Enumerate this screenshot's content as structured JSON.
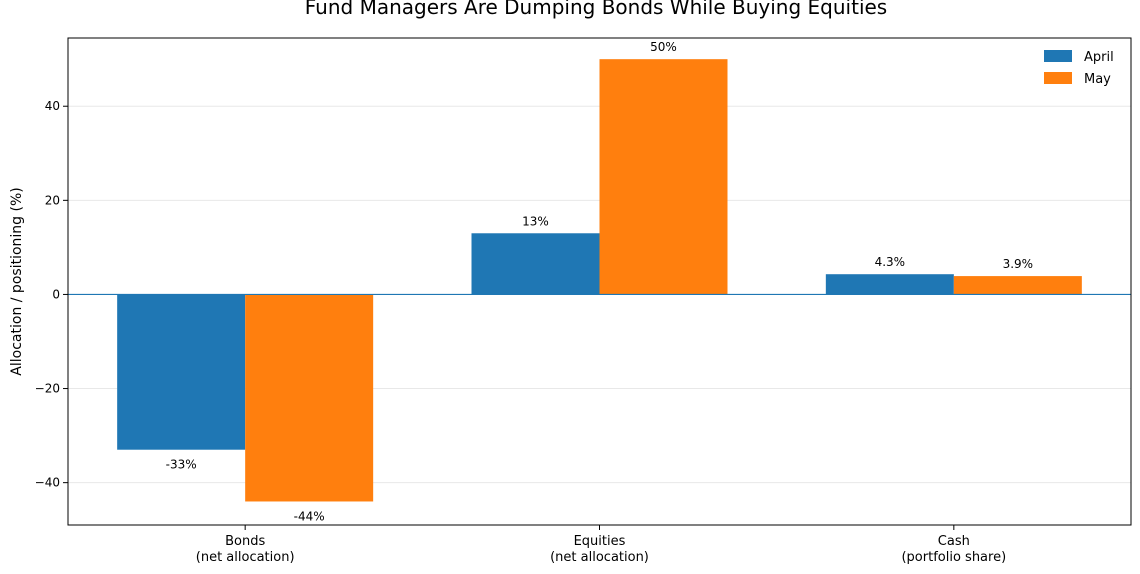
{
  "chart_data": {
    "type": "bar",
    "title": "Fund Managers Are Dumping Bonds While Buying Equities",
    "xlabel": "",
    "ylabel": "Allocation / positioning (%)",
    "categories": [
      [
        "Bonds",
        "(net allocation)"
      ],
      [
        "Equities",
        "(net allocation)"
      ],
      [
        "Cash",
        "(portfolio share)"
      ]
    ],
    "series": [
      {
        "name": "April",
        "color": "#1f77b4",
        "values": [
          -33,
          13,
          4.3
        ],
        "labels": [
          "-33%",
          "13%",
          "4.3%"
        ]
      },
      {
        "name": "May",
        "color": "#ff7f0e",
        "values": [
          -44,
          50,
          3.9
        ],
        "labels": [
          "-44%",
          "50%",
          "3.9%"
        ]
      }
    ],
    "ylim": [
      -49,
      54.5
    ],
    "yticks": [
      -40,
      -20,
      0,
      20,
      40
    ],
    "ytick_labels": [
      "−40",
      "−20",
      "0",
      "20",
      "40"
    ],
    "grid": "horizontal",
    "legend_position": "top-right",
    "zero_line_color": "#1f77b4"
  }
}
